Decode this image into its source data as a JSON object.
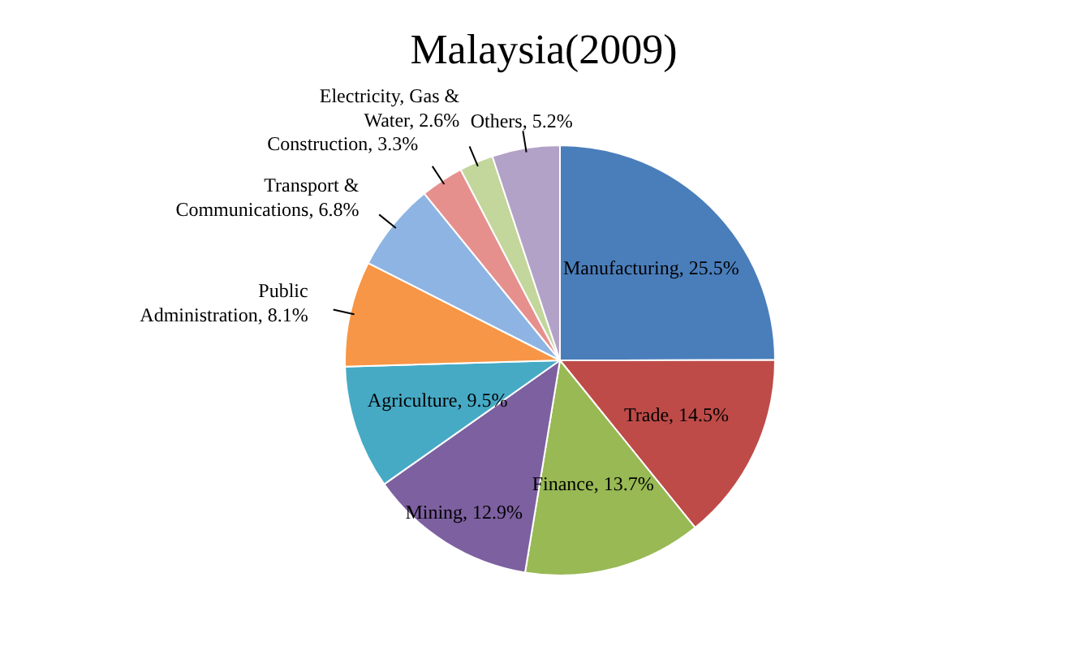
{
  "chart_data": {
    "type": "pie",
    "title": "Malaysia(2009)",
    "categories": [
      "Manufacturing",
      "Trade",
      "Finance",
      "Mining",
      "Agriculture",
      "Public Administration",
      "Transport & Communications",
      "Construction",
      "Electricity, Gas & Water",
      "Others"
    ],
    "values": [
      25.5,
      14.5,
      13.7,
      12.9,
      9.5,
      8.1,
      6.8,
      3.3,
      2.6,
      5.2
    ],
    "value_labels": [
      "25.5%",
      "14.5%",
      "13.7%",
      "12.9%",
      "9.5%",
      "8.1%",
      "6.8%",
      "3.3%",
      "2.6%",
      "5.2%"
    ],
    "colors": [
      "#4a7ebb",
      "#be4b48",
      "#98b954",
      "#7d60a0",
      "#46aac5",
      "#f79646",
      "#8eb4e3",
      "#e6908e",
      "#c3d69b",
      "#b3a2c7"
    ],
    "legend": false
  }
}
